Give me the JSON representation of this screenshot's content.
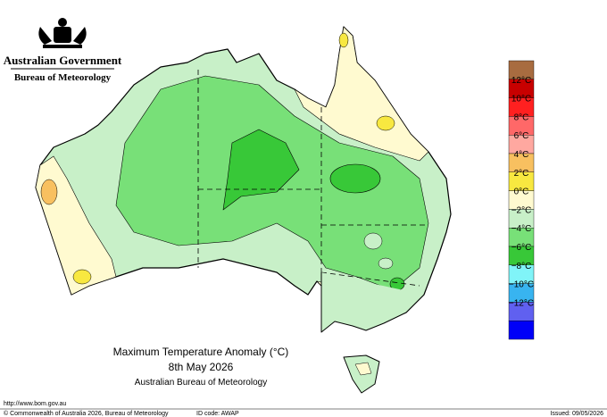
{
  "header": {
    "government": "Australian Government",
    "bureau": "Bureau of Meteorology"
  },
  "title": {
    "line1": "Maximum Temperature Anomaly (°C)",
    "line2": "8th May 2026",
    "line3": "Australian Bureau of Meteorology"
  },
  "legend": {
    "colors": [
      "#a86c40",
      "#c80000",
      "#ff2020",
      "#ff6868",
      "#ffa8a0",
      "#f8c060",
      "#f8e840",
      "#fffad0",
      "#c8f0c8",
      "#78e078",
      "#38c838",
      "#80f4f8",
      "#38b4f0",
      "#6060f0",
      "#0000f8"
    ],
    "labels": [
      "12°C",
      "10°C",
      "8°C",
      "6°C",
      "4°C",
      "2°C",
      "0°C",
      "−2°C",
      "−4°C",
      "−6°C",
      "−8°C",
      "−10°C",
      "−12°C"
    ]
  },
  "footer": {
    "url": "http://www.bom.gov.au",
    "copyright": "© Commonwealth of Australia 2026, Bureau of Meteorology",
    "id_code": "ID code: AWAP",
    "issued": "Issued: 09/05/2026"
  }
}
